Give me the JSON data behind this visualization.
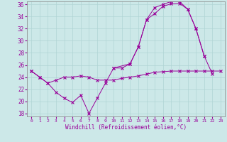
{
  "xlabel": "Windchill (Refroidissement éolien,°C)",
  "bg_color": "#cce8e8",
  "line_color": "#990099",
  "xlim": [
    -0.5,
    23.5
  ],
  "ylim": [
    17.5,
    36.5
  ],
  "yticks": [
    18,
    20,
    22,
    24,
    26,
    28,
    30,
    32,
    34,
    36
  ],
  "xticks": [
    0,
    1,
    2,
    3,
    4,
    5,
    6,
    7,
    8,
    9,
    10,
    11,
    12,
    13,
    14,
    15,
    16,
    17,
    18,
    19,
    20,
    21,
    22,
    23
  ],
  "series1_x": [
    0,
    1,
    2,
    3,
    4,
    5,
    6,
    7,
    8,
    9,
    10,
    11,
    12,
    13,
    14,
    15,
    16,
    17,
    18,
    19,
    20,
    21
  ],
  "series1_y": [
    25.0,
    24.0,
    23.0,
    21.5,
    20.5,
    19.8,
    21.0,
    18.0,
    20.5,
    23.0,
    25.5,
    25.5,
    26.2,
    29.0,
    33.5,
    34.5,
    35.7,
    36.1,
    36.2,
    35.2,
    32.0,
    27.5
  ],
  "series2_x": [
    0,
    1,
    2,
    3,
    4,
    5,
    6,
    7,
    8,
    9,
    10,
    11,
    12,
    13,
    14,
    15,
    16,
    17,
    18,
    19,
    20,
    21,
    22,
    23
  ],
  "series2_y": [
    25.0,
    24.0,
    23.0,
    23.5,
    24.0,
    24.0,
    24.2,
    24.0,
    23.5,
    23.5,
    23.5,
    23.8,
    24.0,
    24.2,
    24.5,
    24.8,
    24.9,
    25.0,
    25.0,
    25.0,
    25.0,
    25.0,
    25.0,
    25.0
  ],
  "series3_x": [
    10,
    12,
    13,
    14,
    15,
    16,
    17,
    18,
    19,
    20,
    21,
    22
  ],
  "series3_y": [
    25.5,
    26.2,
    29.0,
    33.5,
    35.5,
    36.0,
    36.5,
    36.5,
    35.2,
    32.0,
    27.5,
    24.5
  ]
}
